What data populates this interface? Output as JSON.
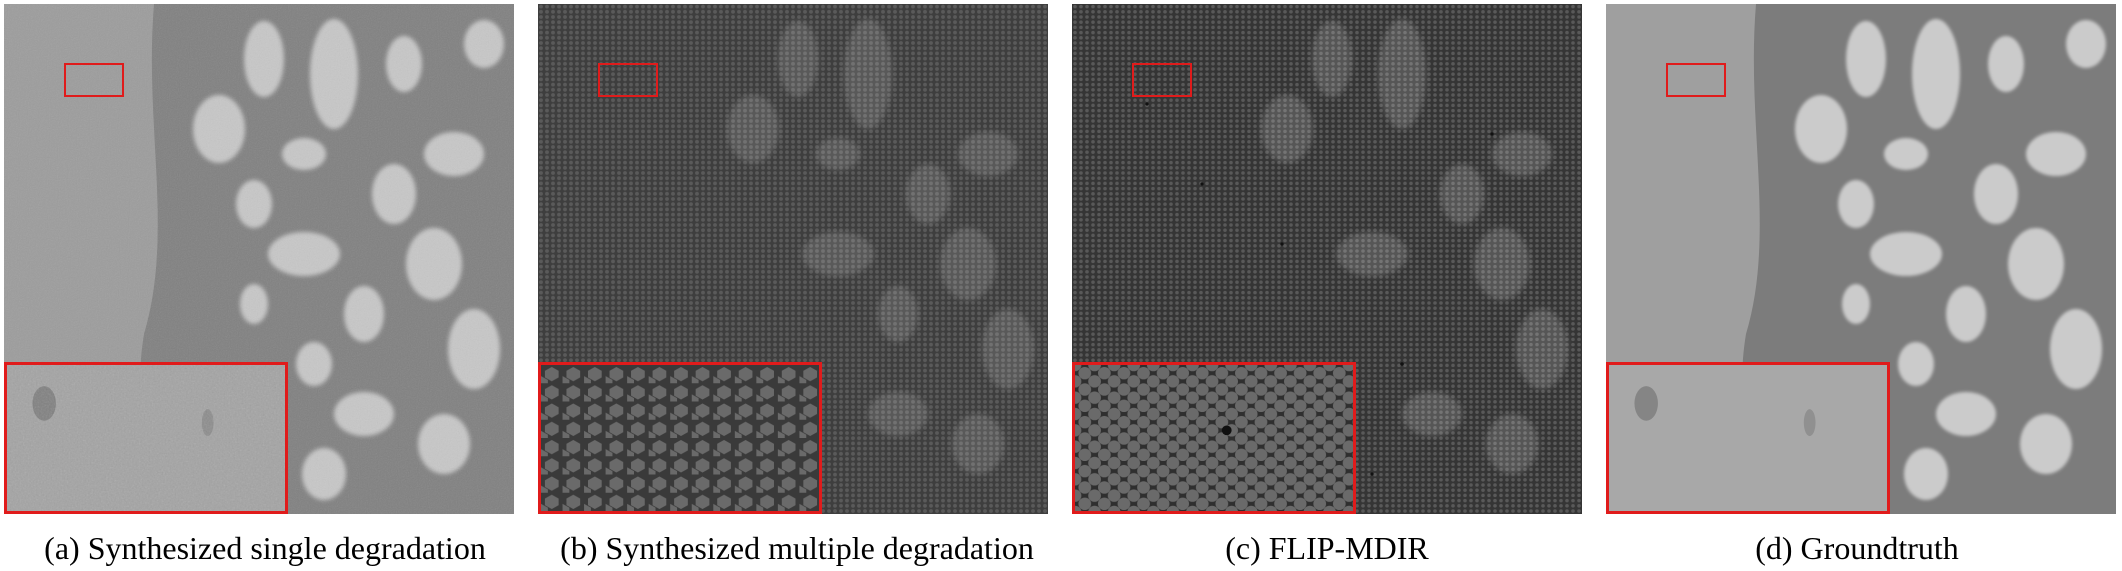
{
  "figure": {
    "panels": [
      {
        "id": "a",
        "caption": "(a) Synthesized single degradation",
        "tone": "light-gray",
        "texture": "smooth tissue",
        "inset_texture": "blurred noise"
      },
      {
        "id": "b",
        "caption": "(b) Synthesized multiple degradation",
        "tone": "dark-gray",
        "texture": "honeycomb fiber pattern",
        "inset_texture": "hexagonal fiber cores"
      },
      {
        "id": "c",
        "caption": "(c) FLIP-MDIR",
        "tone": "dark-gray",
        "texture": "dotted fiber pattern",
        "inset_texture": "round fiber cores"
      },
      {
        "id": "d",
        "caption": "(d) Groundtruth",
        "tone": "light-gray",
        "texture": "smooth tissue",
        "inset_texture": "clean"
      }
    ],
    "colors": {
      "highlight": "#e01b1b",
      "light_bg": "#9a9a9a",
      "light_tissue": "#767676",
      "light_lumen": "#c9c9c9",
      "dark_bg": "#4a4a4a",
      "dark_tissue": "#3a3a3a",
      "dark_lumen": "#6a6a6a"
    }
  }
}
